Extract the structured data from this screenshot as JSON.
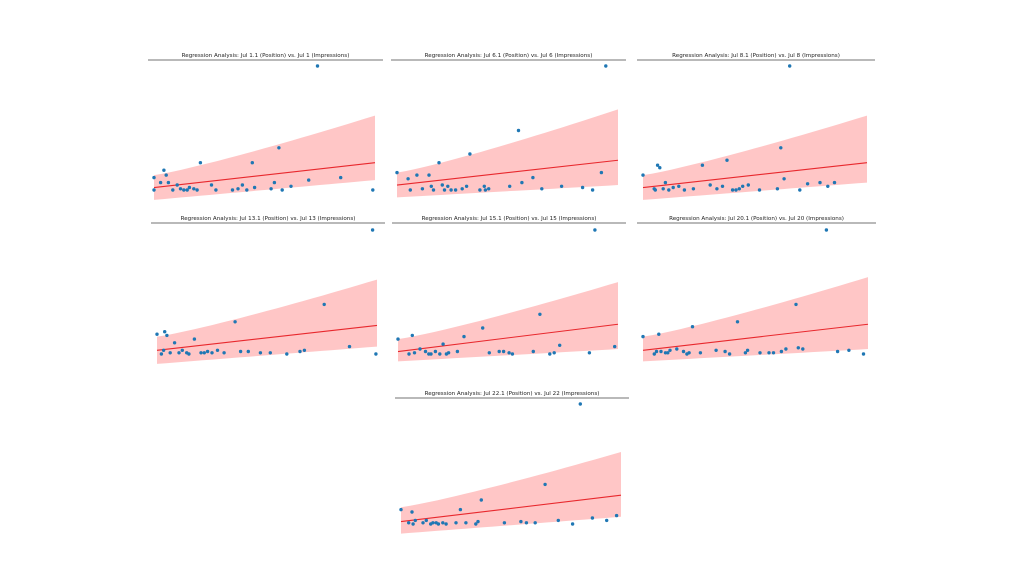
{
  "colors": {
    "point": "#1f77b4",
    "line": "#e8282d",
    "band": "#ffb3b3",
    "axis": "#444444"
  },
  "chart_data": [
    {
      "type": "scatter",
      "title": "Regression Analysis: Jul 1.1 (Position) vs. Jul 1 (Impressions)",
      "xlim": [
        0,
        20
      ],
      "ylim": [
        0,
        100
      ],
      "x": [
        0.0,
        0.0,
        0.6,
        0.9,
        1.1,
        1.3,
        1.7,
        2.1,
        2.4,
        2.7,
        3.0,
        3.2,
        3.6,
        3.9,
        4.2,
        5.2,
        5.6,
        7.1,
        7.6,
        8.0,
        8.4,
        8.9,
        9.1,
        10.6,
        10.9,
        11.3,
        11.6,
        12.4,
        14.0,
        14.8,
        16.9,
        19.8
      ],
      "y": [
        10,
        0,
        6,
        16,
        12,
        6,
        0,
        4,
        1,
        0,
        0,
        2,
        1,
        0,
        22,
        4,
        0,
        0,
        1,
        4,
        0,
        22,
        2,
        1,
        6,
        34,
        0,
        3,
        8,
        100,
        10,
        0
      ],
      "band_upper": [
        12,
        60
      ],
      "band_lower": [
        -8,
        8
      ],
      "fit": [
        2,
        22
      ]
    },
    {
      "type": "scatter",
      "title": "Regression Analysis: Jul 6.1 (Position) vs. Jul 6 (Impressions)",
      "xlim": [
        0,
        20
      ],
      "ylim": [
        0,
        100
      ],
      "x": [
        0.0,
        1.0,
        1.2,
        1.8,
        2.3,
        2.9,
        3.1,
        3.3,
        3.8,
        4.1,
        4.3,
        4.6,
        4.9,
        5.3,
        5.9,
        6.3,
        6.6,
        7.5,
        7.9,
        8.0,
        8.3,
        10.2,
        11.0,
        11.3,
        12.3,
        13.1,
        14.9,
        16.8,
        17.7,
        18.5,
        18.9
      ],
      "y": [
        14,
        9,
        0,
        12,
        1,
        12,
        3,
        0,
        22,
        4,
        0,
        3,
        0,
        0,
        1,
        3,
        29,
        0,
        3,
        0,
        1,
        3,
        48,
        6,
        10,
        1,
        3,
        2,
        0,
        14,
        100
      ],
      "band_upper": [
        14,
        65
      ],
      "band_lower": [
        -6,
        4
      ],
      "fit": [
        4,
        24
      ]
    },
    {
      "type": "scatter",
      "title": "Regression Analysis: Jul 8.1 (Position) vs. Jul 8 (Impressions)",
      "xlim": [
        0,
        20
      ],
      "ylim": [
        0,
        100
      ],
      "x": [
        0.0,
        1.0,
        1.1,
        1.3,
        1.5,
        1.8,
        2.0,
        2.3,
        2.7,
        3.2,
        3.7,
        4.5,
        5.3,
        6.0,
        6.6,
        7.1,
        7.5,
        8.0,
        8.3,
        8.6,
        8.9,
        9.4,
        10.4,
        12.0,
        12.3,
        12.6,
        13.1,
        14.0,
        14.7,
        15.8,
        16.5,
        17.1
      ],
      "y": [
        12,
        1,
        0,
        20,
        18,
        1,
        6,
        0,
        2,
        3,
        0,
        1,
        20,
        4,
        1,
        3,
        24,
        0,
        0,
        1,
        3,
        4,
        0,
        1,
        34,
        9,
        100,
        0,
        5,
        6,
        3,
        6
      ],
      "band_upper": [
        12,
        60
      ],
      "band_lower": [
        -8,
        6
      ],
      "fit": [
        2,
        22
      ]
    },
    {
      "type": "scatter",
      "title": "Regression Analysis: Jul 13.1 (Position) vs. Jul 13 (Impressions)",
      "xlim": [
        0,
        20
      ],
      "ylim": [
        0,
        100
      ],
      "x": [
        0.0,
        0.4,
        0.6,
        0.7,
        0.9,
        1.2,
        1.6,
        2.0,
        2.3,
        2.7,
        2.9,
        3.4,
        4.0,
        4.3,
        4.6,
        5.0,
        5.5,
        6.1,
        7.1,
        7.6,
        8.3,
        9.4,
        10.3,
        11.8,
        13.0,
        13.4,
        15.2,
        17.5,
        19.6,
        19.9
      ],
      "y": [
        16,
        0,
        3,
        18,
        15,
        1,
        9,
        1,
        3,
        1,
        0,
        12,
        1,
        1,
        2,
        1,
        3,
        1,
        26,
        2,
        2,
        1,
        1,
        0,
        2,
        3,
        40,
        6,
        100,
        0
      ],
      "band_upper": [
        14,
        60
      ],
      "band_lower": [
        -8,
        6
      ],
      "fit": [
        3,
        23
      ]
    },
    {
      "type": "scatter",
      "title": "Regression Analysis: Jul 15.1 (Position) vs. Jul 15 (Impressions)",
      "xlim": [
        0,
        20
      ],
      "ylim": [
        0,
        100
      ],
      "x": [
        0.0,
        1.0,
        1.3,
        1.5,
        2.0,
        2.5,
        2.8,
        3.0,
        3.4,
        3.8,
        4.1,
        4.4,
        4.6,
        5.4,
        6.0,
        7.7,
        8.3,
        9.2,
        9.6,
        10.1,
        10.4,
        12.3,
        12.9,
        13.8,
        14.2,
        14.7,
        17.4,
        17.9,
        19.7
      ],
      "y": [
        12,
        0,
        15,
        1,
        4,
        2,
        0,
        0,
        2,
        0,
        8,
        0,
        1,
        2,
        14,
        21,
        1,
        2,
        2,
        1,
        0,
        2,
        32,
        0,
        1,
        7,
        1,
        100,
        6
      ],
      "band_upper": [
        12,
        58
      ],
      "band_lower": [
        -6,
        4
      ],
      "fit": [
        2,
        24
      ]
    },
    {
      "type": "scatter",
      "title": "Regression Analysis: Jul 20.1 (Position) vs. Jul 20 (Impressions)",
      "xlim": [
        0,
        20
      ],
      "ylim": [
        0,
        100
      ],
      "x": [
        0.0,
        1.0,
        1.2,
        1.4,
        1.6,
        2.0,
        2.2,
        2.4,
        3.0,
        3.6,
        3.9,
        4.1,
        4.4,
        5.1,
        6.5,
        7.3,
        7.7,
        8.4,
        9.1,
        9.3,
        10.4,
        11.2,
        11.6,
        12.3,
        12.7,
        13.6,
        13.8,
        14.2,
        16.3,
        17.3,
        18.3,
        19.6
      ],
      "y": [
        14,
        0,
        2,
        16,
        2,
        1,
        1,
        3,
        4,
        2,
        0,
        1,
        22,
        1,
        3,
        2,
        0,
        26,
        1,
        3,
        1,
        1,
        1,
        2,
        4,
        40,
        5,
        4,
        100,
        2,
        3,
        0
      ],
      "band_upper": [
        14,
        62
      ],
      "band_lower": [
        -6,
        4
      ],
      "fit": [
        3,
        24
      ]
    },
    {
      "type": "scatter",
      "title": "Regression Analysis: Jul 22.1 (Position) vs. Jul 22 (Impressions)",
      "xlim": [
        0,
        20
      ],
      "ylim": [
        0,
        100
      ],
      "x": [
        0.0,
        0.7,
        1.0,
        1.1,
        1.3,
        2.0,
        2.3,
        2.7,
        2.9,
        3.2,
        3.4,
        3.8,
        4.1,
        5.0,
        5.4,
        5.9,
        6.8,
        7.0,
        7.3,
        9.4,
        10.9,
        11.4,
        12.2,
        13.1,
        14.3,
        15.6,
        16.3,
        17.4,
        18.7,
        19.6
      ],
      "y": [
        12,
        1,
        10,
        0,
        3,
        1,
        3,
        0,
        1,
        1,
        0,
        1,
        0,
        1,
        12,
        1,
        0,
        2,
        20,
        1,
        2,
        1,
        1,
        33,
        3,
        0,
        100,
        5,
        3,
        7
      ],
      "band_upper": [
        14,
        60
      ],
      "band_lower": [
        -8,
        6
      ],
      "fit": [
        2,
        24
      ]
    }
  ]
}
